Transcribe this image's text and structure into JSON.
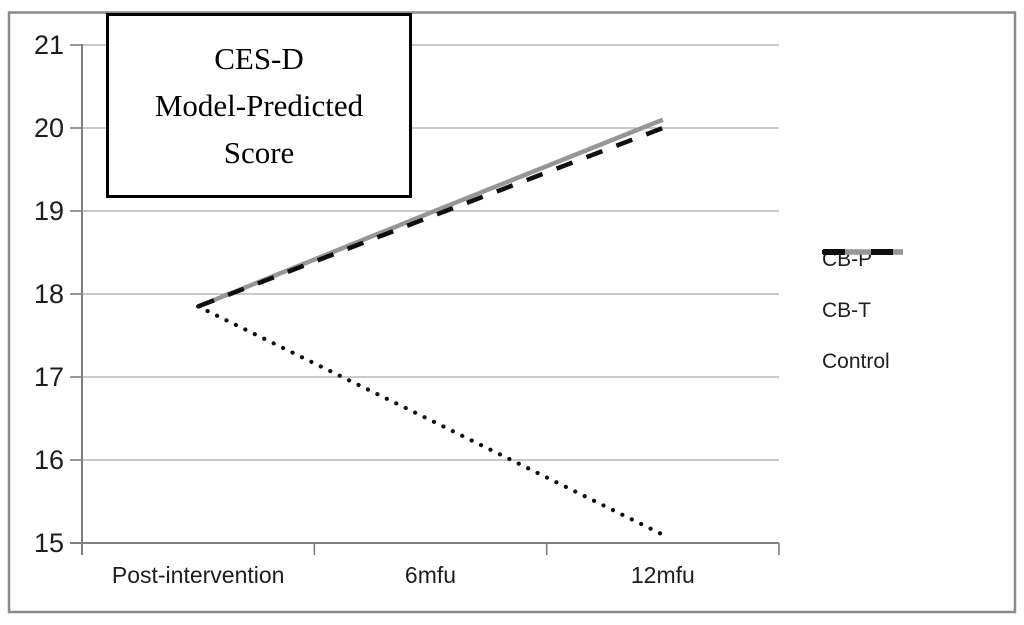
{
  "figure": {
    "background": "#ffffff",
    "border_color": "#8a8a8a"
  },
  "chart_data": {
    "type": "line",
    "title_lines": [
      "CES-D",
      "Model-Predicted",
      "Score"
    ],
    "title_full": "CES-D Model-Predicted Score",
    "categories": [
      "Post-intervention",
      "6mfu",
      "12mfu"
    ],
    "series": [
      {
        "name": "CB-P",
        "style": "dotted",
        "color": "#0f0f0f",
        "values": [
          17.85,
          16.48,
          15.1
        ]
      },
      {
        "name": "CB-T",
        "style": "solid",
        "color": "#969696",
        "values": [
          17.85,
          18.98,
          20.1
        ]
      },
      {
        "name": "Control",
        "style": "dashed",
        "color": "#0f0f0f",
        "values": [
          17.85,
          18.93,
          20.0
        ]
      }
    ],
    "ylim": [
      15,
      21
    ],
    "ytick_step": 1,
    "ytick_labels": [
      "15",
      "16",
      "17",
      "18",
      "19",
      "20",
      "21"
    ],
    "xlabel": "",
    "ylabel": "",
    "grid": true,
    "legend_position": "right",
    "axis_color": "#7f7f7f",
    "gridline_color": "#a9a9a9"
  }
}
